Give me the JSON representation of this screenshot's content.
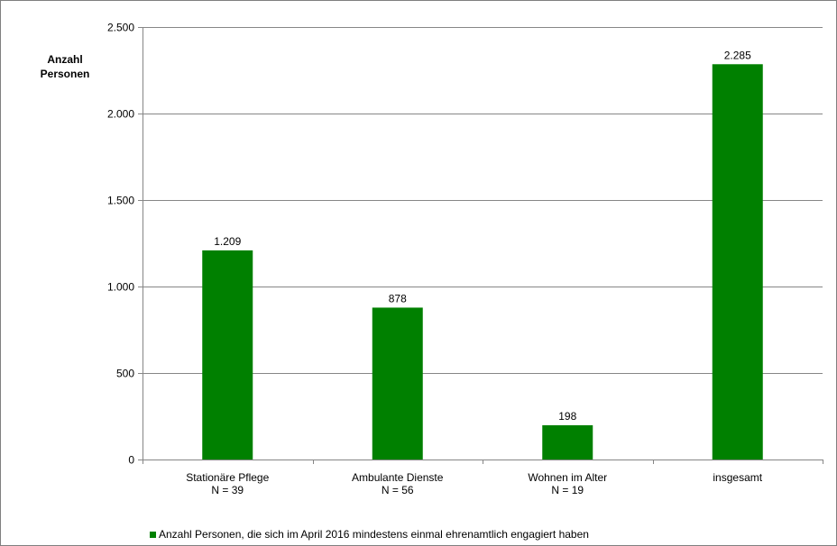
{
  "chart_data": {
    "type": "bar",
    "ylabel": [
      "Anzahl",
      "Personen"
    ],
    "categories": [
      [
        "Stationäre Pflege",
        "N = 39"
      ],
      [
        "Ambulante Dienste",
        "N = 56"
      ],
      [
        "Wohnen im Alter",
        "N = 19"
      ],
      [
        "insgesamt"
      ]
    ],
    "series": [
      {
        "name": "Anzahl Personen, die sich im April 2016 mindestens einmal ehrenamtlich engagiert haben",
        "values": [
          1209,
          878,
          198,
          2285
        ],
        "value_labels": [
          "1.209",
          "878",
          "198",
          "2.285"
        ],
        "color": "#008000"
      }
    ],
    "ylim": [
      0,
      2500
    ],
    "yticks": [
      0,
      500,
      1000,
      1500,
      2000,
      2500
    ],
    "ytick_labels": [
      "0",
      "500",
      "1.000",
      "1.500",
      "2.000",
      "2.500"
    ],
    "grid": true,
    "legend_position": "bottom-left"
  },
  "colors": {
    "bar": "#008000",
    "grid": "#868686",
    "axis": "#868686"
  }
}
